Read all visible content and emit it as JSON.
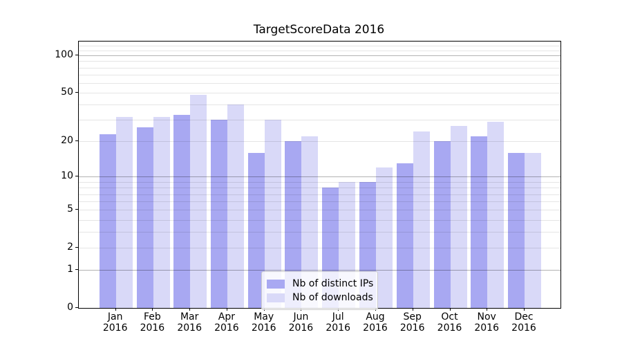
{
  "title": "TargetScoreData 2016",
  "chart_data": {
    "type": "bar",
    "title": "TargetScoreData 2016",
    "xlabel": "",
    "ylabel": "",
    "yscale": "log1p",
    "grid": true,
    "legend_position": "lower center",
    "year": "2016",
    "categories": [
      "Jan",
      "Feb",
      "Mar",
      "Apr",
      "May",
      "Jun",
      "Jul",
      "Aug",
      "Sep",
      "Oct",
      "Nov",
      "Dec"
    ],
    "yticks": [
      0,
      1,
      2,
      5,
      10,
      20,
      50,
      100
    ],
    "ylim": [
      0,
      130
    ],
    "series": [
      {
        "name": "Nb of distinct IPs",
        "color": "#a8a8f2",
        "values": [
          23,
          26,
          33,
          30,
          16,
          20,
          8,
          9,
          13,
          20,
          22,
          16
        ]
      },
      {
        "name": "Nb of downloads",
        "color": "#d9d9f8",
        "values": [
          32,
          32,
          48,
          40,
          30,
          22,
          9,
          12,
          24,
          27,
          29,
          16
        ]
      }
    ]
  },
  "colors": {
    "major_grid": "#b3b3b3",
    "minor_grid": "#e6e6e6",
    "axis": "#000000",
    "background": "#ffffff"
  }
}
